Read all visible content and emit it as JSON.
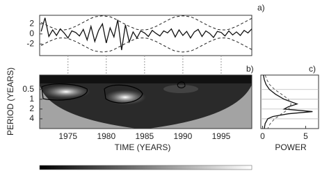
{
  "chart_data": [
    {
      "type": "line",
      "label": "a)",
      "x": [
        1971.5,
        1972,
        1972.5,
        1973,
        1973.5,
        1974,
        1974.5,
        1975,
        1975.5,
        1976,
        1976.5,
        1977,
        1977.5,
        1978,
        1978.5,
        1979,
        1979.5,
        1980,
        1980.5,
        1981,
        1981.5,
        1982,
        1982.5,
        1983,
        1983.5,
        1984,
        1984.5,
        1985,
        1985.5,
        1986,
        1986.5,
        1987,
        1987.5,
        1988,
        1988.5,
        1989,
        1989.5,
        1990,
        1990.5,
        1991,
        1991.5,
        1992,
        1992.5,
        1993,
        1993.5,
        1994,
        1994.5,
        1995,
        1995.5,
        1996,
        1996.5,
        1997,
        1997.5,
        1998,
        1998.5,
        1999
      ],
      "series": [
        {
          "color": "#111111",
          "dash": false,
          "values": [
            0.5,
            3.2,
            -0.5,
            0.8,
            -0.3,
            1,
            0.2,
            -0.8,
            0.6,
            0.3,
            -0.4,
            0.9,
            -1.2,
            1.5,
            -1.5,
            0.7,
            2.0,
            -1.8,
            1.2,
            -0.6,
            2.8,
            -3.2,
            1.8,
            -1.6,
            0.4,
            -0.8,
            0.6,
            0.2,
            -0.5,
            0.7,
            0.1,
            -0.4,
            0.6,
            0.2,
            1.0,
            -0.6,
            0.8,
            -0.3,
            0.5,
            -0.8,
            0.4,
            0.9,
            -0.5,
            0.6,
            0.1,
            -0.7,
            0.5,
            0.3,
            -0.4,
            0.6,
            -0.2,
            0.4,
            -0.3,
            0.7,
            0.2,
            1.0
          ]
        },
        {
          "color": "#222222",
          "dash": true,
          "values": [
            2.3,
            1.9,
            1.5,
            1.2,
            0.9,
            0.8,
            0.8,
            0.9,
            1.2,
            1.5,
            1.9,
            2.3,
            2.7,
            3.1,
            3.4,
            3.5,
            3.6,
            3.5,
            3.4,
            3.1,
            2.7,
            2.3,
            1.9,
            1.5,
            1.2,
            0.9,
            0.8,
            0.8,
            0.9,
            1.2,
            1.5,
            1.9,
            2.3,
            2.7,
            3.1,
            3.4,
            3.5,
            3.6,
            3.5,
            3.4,
            3.1,
            2.7,
            2.3,
            1.9,
            1.5,
            1.2,
            0.9,
            0.8,
            0.8,
            0.9,
            1.2,
            1.5,
            1.9,
            2.3,
            2.7,
            3.1
          ]
        },
        {
          "color": "#222222",
          "dash": true,
          "values": [
            -2.3,
            -1.9,
            -1.5,
            -1.2,
            -0.9,
            -0.8,
            -0.8,
            -0.9,
            -1.2,
            -1.5,
            -1.9,
            -2.3,
            -2.7,
            -3.1,
            -3.4,
            -3.5,
            -3.6,
            -3.5,
            -3.4,
            -3.1,
            -2.7,
            -2.3,
            -1.9,
            -1.5,
            -1.2,
            -0.9,
            -0.8,
            -0.8,
            -0.9,
            -1.2,
            -1.5,
            -1.9,
            -2.3,
            -2.7,
            -3.1,
            -3.4,
            -3.5,
            -3.6,
            -3.5,
            -3.4,
            -3.1,
            -2.7,
            -2.3,
            -1.9,
            -1.5,
            -1.2,
            -0.9,
            -0.8,
            -0.8,
            -0.9,
            -1.2,
            -1.5,
            -1.9,
            -2.3,
            -2.7,
            -3.1
          ]
        }
      ],
      "xlim": [
        1971.3,
        1999
      ],
      "ylim": [
        -4.3,
        3.7
      ],
      "yticks": [
        2,
        0,
        -2
      ]
    },
    {
      "type": "contour",
      "label": "b)",
      "xlabel": "TIME (YEARS)",
      "ylabel": "PERIOD (YEARS)",
      "xlim": [
        1971.3,
        1999
      ],
      "xticks": [
        1975,
        1980,
        1985,
        1990,
        1995
      ],
      "ylim": [
        0.18,
        8
      ],
      "y_log": true,
      "y_inverted": true,
      "yticks": [
        0.5,
        1,
        2,
        4
      ]
    },
    {
      "type": "profile",
      "label": "c)",
      "xlabel": "POWER",
      "y": [
        0.18,
        0.25,
        0.35,
        0.5,
        0.7,
        1,
        1.4,
        1.7,
        2,
        2.4,
        2.8,
        3.4,
        4,
        5.6,
        8
      ],
      "series": [
        {
          "color": "#111111",
          "dash": false,
          "values": [
            0.1,
            0.2,
            0.4,
            0.8,
            1.5,
            2.5,
            4.0,
            3.0,
            2.5,
            5.8,
            3.0,
            1.2,
            0.6,
            0.3,
            0.2
          ]
        },
        {
          "color": "#555555",
          "dash": true,
          "values": [
            0.3,
            0.5,
            0.8,
            1.4,
            2.2,
            3.0,
            3.3,
            3.2,
            3.0,
            2.6,
            2.2,
            1.8,
            1.4,
            0.9,
            0.6
          ]
        }
      ],
      "xlim": [
        -0.2,
        6.5
      ],
      "xticks": [
        0,
        5
      ],
      "ylim": [
        0.18,
        8
      ],
      "y_log": true,
      "y_inverted": true,
      "yticks": [
        0.5,
        1,
        2,
        4
      ],
      "grid": true
    }
  ]
}
